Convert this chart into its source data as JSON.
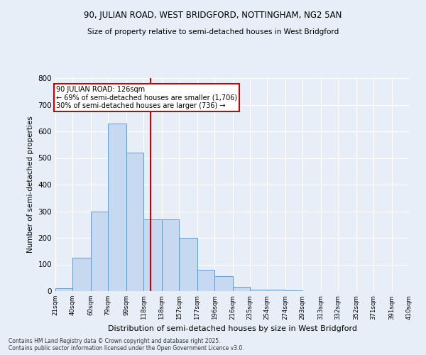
{
  "title1": "90, JULIAN ROAD, WEST BRIDGFORD, NOTTINGHAM, NG2 5AN",
  "title2": "Size of property relative to semi-detached houses in West Bridgford",
  "xlabel": "Distribution of semi-detached houses by size in West Bridgford",
  "ylabel": "Number of semi-detached properties",
  "property_label": "90 JULIAN ROAD: 126sqm",
  "annotation_line1": "← 69% of semi-detached houses are smaller (1,706)",
  "annotation_line2": "30% of semi-detached houses are larger (736) →",
  "bin_edges": [
    21,
    40,
    60,
    79,
    99,
    118,
    138,
    157,
    177,
    196,
    216,
    235,
    254,
    274,
    293,
    313,
    332,
    352,
    371,
    391,
    410
  ],
  "counts": [
    10,
    125,
    300,
    630,
    520,
    270,
    270,
    200,
    80,
    55,
    15,
    5,
    5,
    2,
    1,
    0,
    0,
    0,
    0,
    0
  ],
  "bar_color": "#c6d9f0",
  "bar_edge_color": "#6699cc",
  "vline_color": "#cc0000",
  "vline_x": 126,
  "annotation_box_color": "#cc0000",
  "ylim": [
    0,
    800
  ],
  "yticks": [
    0,
    100,
    200,
    300,
    400,
    500,
    600,
    700,
    800
  ],
  "footer_text": "Contains HM Land Registry data © Crown copyright and database right 2025.\nContains public sector information licensed under the Open Government Licence v3.0.",
  "bg_color": "#e8eef8"
}
